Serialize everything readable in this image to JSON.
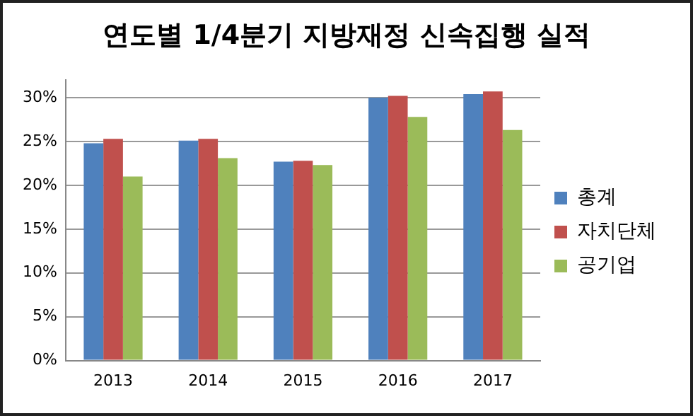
{
  "chart_data": {
    "type": "bar",
    "title": "연도별 1/4분기 지방재정 신속집행 실적",
    "categories": [
      "2013",
      "2014",
      "2015",
      "2016",
      "2017"
    ],
    "series": [
      {
        "name": "총계",
        "color": "#4f81bd",
        "values": [
          24.8,
          25.1,
          22.7,
          30.0,
          30.4
        ]
      },
      {
        "name": "자치단체",
        "color": "#c0504d",
        "values": [
          25.3,
          25.3,
          22.8,
          30.2,
          30.7
        ]
      },
      {
        "name": "공기업",
        "color": "#9bbb59",
        "values": [
          21.0,
          23.1,
          22.3,
          27.8,
          26.3
        ]
      }
    ],
    "ylim": [
      0,
      32
    ],
    "yticks": [
      {
        "value": 0,
        "label": "0%"
      },
      {
        "value": 5,
        "label": "5%"
      },
      {
        "value": 10,
        "label": "10%"
      },
      {
        "value": 15,
        "label": "15%"
      },
      {
        "value": 20,
        "label": "20%"
      },
      {
        "value": 25,
        "label": "25%"
      },
      {
        "value": 30,
        "label": "30%"
      }
    ],
    "grid": "y",
    "legend": "right"
  }
}
